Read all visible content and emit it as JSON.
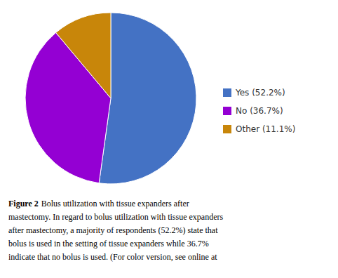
{
  "chart_data": {
    "type": "pie",
    "values": [
      52.2,
      36.7,
      11.1
    ],
    "labels": [
      "Yes (52.2%)",
      "No (36.7%)",
      "Other (11.1%)"
    ],
    "colors": [
      "#4472C4",
      "#9400D3",
      "#C8860A"
    ],
    "legend": "right",
    "annotations": [
      "Figure 2",
      "Bolus utilization with tissue expanders after",
      "mastectomy. In regard to bolus utilization with tissue expanders",
      "after mastectomy, a majority of respondents (52.2%) state that",
      "bolus is used in the setting of tissue expanders while 36.7%",
      "indicate that no bolus is used. (For color version, see online at"
    ]
  }
}
